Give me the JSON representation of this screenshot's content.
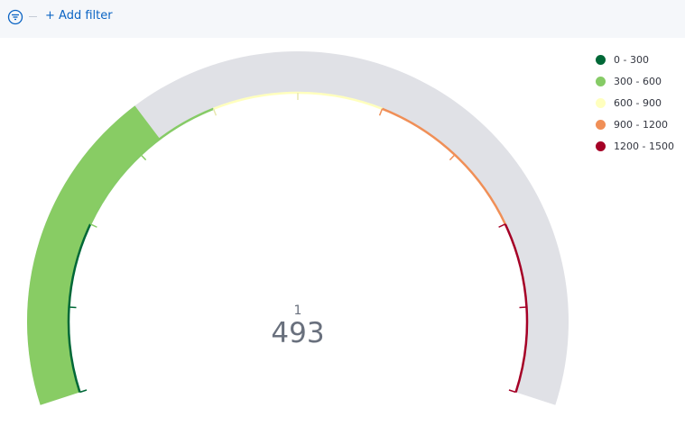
{
  "filter_bar": {
    "add_filter_label": "+ Add filter",
    "icon": "filter-icon"
  },
  "colors": {
    "track": "#e0e1e6",
    "value_fill": "#88cc64",
    "text": "#69707d",
    "link": "#0b64c4"
  },
  "chart_data": {
    "type": "gauge",
    "min": 0,
    "max": 1500,
    "value": 493,
    "count_label": "1",
    "value_label": "493",
    "ranges": [
      {
        "label": "0 - 300",
        "from": 0,
        "to": 300,
        "color": "#006837"
      },
      {
        "label": "300 - 600",
        "from": 300,
        "to": 600,
        "color": "#86cb66"
      },
      {
        "label": "600 - 900",
        "from": 600,
        "to": 900,
        "color": "#ffffbe"
      },
      {
        "label": "900 - 1200",
        "from": 900,
        "to": 1200,
        "color": "#f08f57"
      },
      {
        "label": "1200 - 1500",
        "from": 1200,
        "to": 1500,
        "color": "#a50026"
      }
    ],
    "legend_position": "top-right"
  }
}
